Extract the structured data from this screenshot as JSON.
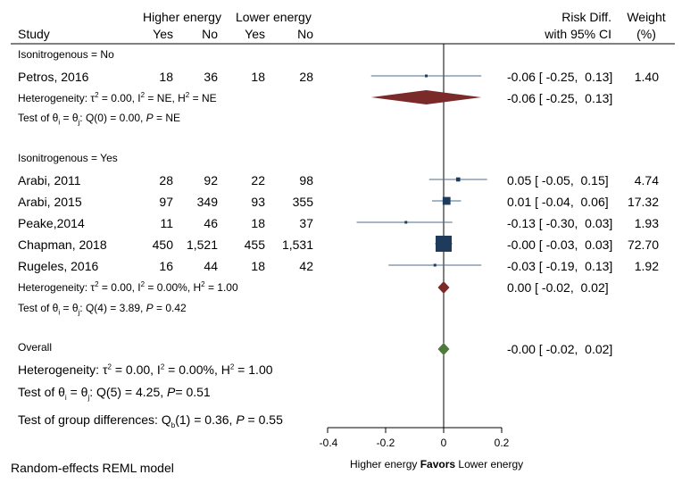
{
  "header": {
    "study": "Study",
    "higher_energy": "Higher energy",
    "lower_energy": "Lower energy",
    "yes": "Yes",
    "no": "No",
    "risk_diff": "Risk Diff.",
    "with_ci": "with 95% CI",
    "weight": "Weight",
    "weight_unit": "(%)"
  },
  "chart_data": {
    "type": "forest",
    "effect_measure": "Risk Diff. with 95% CI",
    "xlim": [
      -0.4,
      0.2
    ],
    "xticks": [
      "-0.4",
      "-0.2",
      "0",
      "0.2"
    ],
    "null_line": 0,
    "xlabel_left": "Higher energy",
    "xlabel_mid": "Favors",
    "xlabel_right": "Lower energy",
    "groups": [
      {
        "label": "Isonitrogenous = No",
        "studies": [
          {
            "study": "Petros, 2016",
            "he_yes": "18",
            "he_no": "36",
            "le_yes": "18",
            "le_no": "28",
            "rd": -0.06,
            "lo": -0.25,
            "hi": 0.13,
            "weight": 1.4,
            "rd_text": "-0.06 [ -0.25,  0.13]",
            "weight_text": "1.40"
          }
        ],
        "pooled": {
          "rd": -0.06,
          "lo": -0.25,
          "hi": 0.13,
          "text": "-0.06 [ -0.25,  0.13]"
        },
        "heterogeneity": {
          "tau2": "0.00",
          "i2": "NE",
          "h2": "NE"
        },
        "test": {
          "df": "0",
          "q": "0.00",
          "p": "NE"
        }
      },
      {
        "label": "Isonitrogenous = Yes",
        "studies": [
          {
            "study": "Arabi, 2011",
            "he_yes": "28",
            "he_no": "92",
            "le_yes": "22",
            "le_no": "98",
            "rd": 0.05,
            "lo": -0.05,
            "hi": 0.15,
            "weight": 4.74,
            "rd_text": "0.05 [ -0.05,  0.15]",
            "weight_text": "4.74"
          },
          {
            "study": "Arabi, 2015",
            "he_yes": "97",
            "he_no": "349",
            "le_yes": "93",
            "le_no": "355",
            "rd": 0.01,
            "lo": -0.04,
            "hi": 0.06,
            "weight": 17.32,
            "rd_text": "0.01 [ -0.04,  0.06]",
            "weight_text": "17.32"
          },
          {
            "study": "Peake,2014",
            "he_yes": "11",
            "he_no": "46",
            "le_yes": "18",
            "le_no": "37",
            "rd": -0.13,
            "lo": -0.3,
            "hi": 0.03,
            "weight": 1.93,
            "rd_text": "-0.13 [ -0.30,  0.03]",
            "weight_text": "1.93"
          },
          {
            "study": "Chapman, 2018",
            "he_yes": "450",
            "he_no": "1,521",
            "le_yes": "455",
            "le_no": "1,531",
            "rd": -0.0,
            "lo": -0.03,
            "hi": 0.03,
            "weight": 72.7,
            "rd_text": "-0.00 [ -0.03,  0.03]",
            "weight_text": "72.70"
          },
          {
            "study": "Rugeles, 2016",
            "he_yes": "16",
            "he_no": "44",
            "le_yes": "18",
            "le_no": "42",
            "rd": -0.03,
            "lo": -0.19,
            "hi": 0.13,
            "weight": 1.92,
            "rd_text": "-0.03 [ -0.19,  0.13]",
            "weight_text": "1.92"
          }
        ],
        "pooled": {
          "rd": 0.0,
          "lo": -0.02,
          "hi": 0.02,
          "text": "0.00 [ -0.02,  0.02]"
        },
        "heterogeneity": {
          "tau2": "0.00",
          "i2": "0.00%",
          "h2": "1.00"
        },
        "test": {
          "df": "4",
          "q": "3.89",
          "p": "0.42"
        }
      }
    ],
    "overall": {
      "label": "Overall",
      "rd": -0.0,
      "lo": -0.02,
      "hi": 0.02,
      "text": "-0.00 [ -0.02,  0.02]",
      "heterogeneity": {
        "tau2": "0.00",
        "i2": "0.00%",
        "h2": "1.00"
      },
      "test": {
        "df": "5",
        "q": "4.25",
        "p": "0.51"
      },
      "group_diff": {
        "df": "1",
        "q": "0.36",
        "p": "0.55"
      }
    },
    "colors": {
      "ci_line": "#4a6d8c",
      "square": "#1f3b5c",
      "subgroup_diamond": "#7b2a2a",
      "overall_diamond": "#4e7a3a"
    }
  },
  "footer": {
    "model": "Random-effects REML model"
  }
}
